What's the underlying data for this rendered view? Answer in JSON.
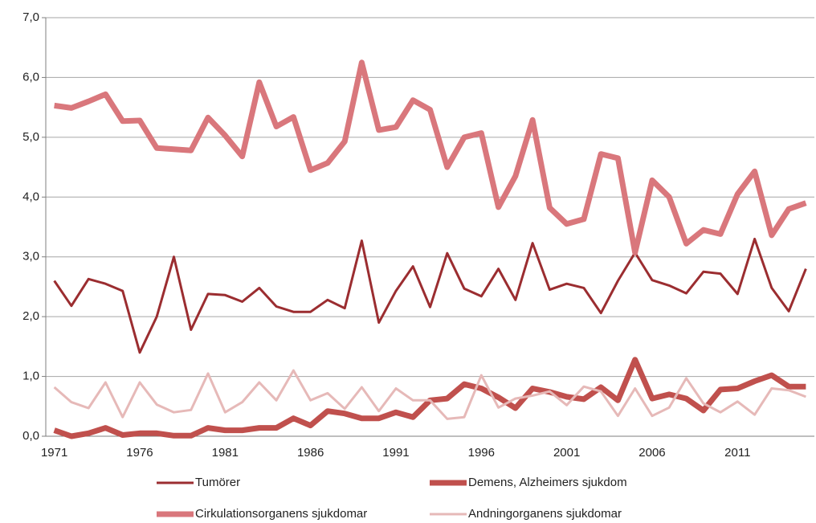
{
  "chart_data": {
    "type": "line",
    "categories": [
      "1971",
      null,
      null,
      null,
      null,
      "1976",
      null,
      null,
      null,
      null,
      "1981",
      null,
      null,
      null,
      null,
      "1986",
      null,
      null,
      null,
      null,
      "1991",
      null,
      null,
      null,
      null,
      "1996",
      null,
      null,
      null,
      null,
      "2001",
      null,
      null,
      null,
      null,
      "2006",
      null,
      null,
      null,
      null,
      "2011",
      null,
      null,
      null,
      null
    ],
    "ylim": [
      0,
      7
    ],
    "yticks": [
      {
        "value": 0,
        "label": "0,0"
      },
      {
        "value": 1,
        "label": "1,0"
      },
      {
        "value": 2,
        "label": "2,0"
      },
      {
        "value": 3,
        "label": "3,0"
      },
      {
        "value": 4,
        "label": "4,0"
      },
      {
        "value": 5,
        "label": "5,0"
      },
      {
        "value": 6,
        "label": "6,0"
      },
      {
        "value": 7,
        "label": "7,0"
      }
    ],
    "grid": true,
    "legend": "bottom",
    "series": [
      {
        "name": "Tumörer",
        "color": "#9b2d30",
        "values": [
          2.6,
          2.18,
          2.63,
          2.55,
          2.43,
          1.4,
          2.0,
          3.0,
          1.78,
          2.38,
          2.36,
          2.25,
          2.48,
          2.17,
          2.08,
          2.08,
          2.28,
          2.14,
          3.27,
          1.9,
          2.43,
          2.84,
          2.16,
          3.06,
          2.47,
          2.34,
          2.8,
          2.28,
          3.23,
          2.45,
          2.55,
          2.48,
          2.06,
          2.6,
          3.07,
          2.61,
          2.52,
          2.39,
          2.75,
          2.72,
          2.38,
          3.3,
          2.48,
          2.09,
          2.8
        ]
      },
      {
        "name": "Demens, Alzheimers sjukdom",
        "color": "#c0504d",
        "values": [
          0.1,
          0.0,
          0.05,
          0.14,
          0.02,
          0.05,
          0.05,
          0.01,
          0.01,
          0.14,
          0.1,
          0.1,
          0.14,
          0.14,
          0.3,
          0.18,
          0.42,
          0.38,
          0.3,
          0.3,
          0.4,
          0.32,
          0.6,
          0.63,
          0.87,
          0.8,
          0.65,
          0.47,
          0.8,
          0.74,
          0.66,
          0.62,
          0.82,
          0.6,
          1.28,
          0.63,
          0.7,
          0.63,
          0.43,
          0.78,
          0.8,
          0.92,
          1.02,
          0.83,
          0.83
        ]
      },
      {
        "name": "Cirkulationsorganens sjukdomar",
        "color": "#d9777c",
        "values": [
          5.53,
          5.49,
          5.6,
          5.72,
          5.27,
          5.28,
          4.82,
          4.8,
          4.78,
          5.33,
          5.03,
          4.68,
          5.92,
          5.18,
          5.34,
          4.45,
          4.57,
          4.93,
          6.25,
          5.12,
          5.17,
          5.62,
          5.46,
          4.5,
          5.0,
          5.07,
          3.83,
          4.35,
          5.29,
          3.82,
          3.55,
          3.63,
          4.72,
          4.65,
          3.07,
          4.28,
          4.0,
          3.22,
          3.45,
          3.38,
          4.05,
          4.43,
          3.36,
          3.8,
          3.9
        ]
      },
      {
        "name": "Andningorganens sjukdomar",
        "color": "#e6b9b8",
        "values": [
          0.82,
          0.57,
          0.47,
          0.9,
          0.32,
          0.9,
          0.53,
          0.4,
          0.44,
          1.05,
          0.4,
          0.57,
          0.9,
          0.6,
          1.1,
          0.6,
          0.72,
          0.46,
          0.82,
          0.42,
          0.8,
          0.6,
          0.6,
          0.29,
          0.32,
          1.02,
          0.48,
          0.63,
          0.68,
          0.75,
          0.52,
          0.83,
          0.75,
          0.34,
          0.8,
          0.34,
          0.48,
          0.97,
          0.55,
          0.4,
          0.58,
          0.36,
          0.8,
          0.77,
          0.66
        ]
      }
    ]
  }
}
